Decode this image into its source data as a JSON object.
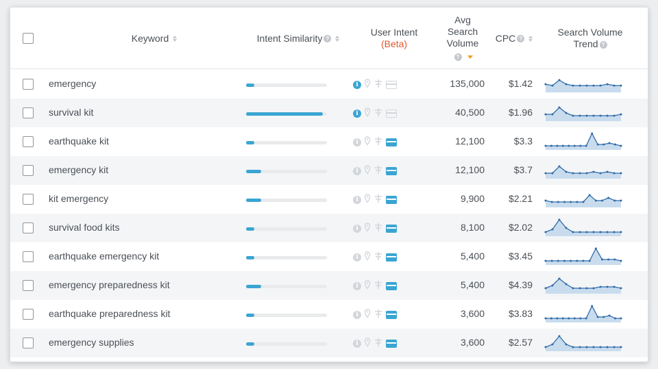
{
  "header": {
    "keyword": "Keyword",
    "intent_similarity": "Intent Similarity",
    "user_intent": "User Intent",
    "beta": "(Beta)",
    "avg_line1": "Avg",
    "avg_line2": "Search",
    "avg_line3": "Volume",
    "cpc": "CPC",
    "trend_line1": "Search Volume",
    "trend_line2": "Trend"
  },
  "colors": {
    "accent": "#3aa5d2",
    "beta": "#e4572e",
    "sort_active": "#f0a020",
    "icon_inactive": "#d3d6da"
  },
  "rows": [
    {
      "keyword": "emergency",
      "similarity": 0.1,
      "intent_info_active": true,
      "intent_card_active": false,
      "volume": "135,000",
      "cpc": "$1.42",
      "trend": [
        5,
        4,
        8,
        5,
        4,
        4,
        4,
        4,
        4,
        5,
        4,
        4
      ]
    },
    {
      "keyword": "survival kit",
      "similarity": 0.95,
      "intent_info_active": true,
      "intent_card_active": false,
      "volume": "40,500",
      "cpc": "$1.96",
      "trend": [
        4,
        4,
        9,
        5,
        3,
        3,
        3,
        3,
        3,
        3,
        3,
        4
      ]
    },
    {
      "keyword": "earthquake kit",
      "similarity": 0.1,
      "intent_info_active": false,
      "intent_card_active": true,
      "volume": "12,100",
      "cpc": "$3.3",
      "trend": [
        2,
        2,
        2,
        2,
        2,
        2,
        2,
        2,
        11,
        3,
        3,
        4,
        3,
        2
      ]
    },
    {
      "keyword": "emergency kit",
      "similarity": 0.19,
      "intent_info_active": false,
      "intent_card_active": true,
      "volume": "12,100",
      "cpc": "$3.7",
      "trend": [
        3,
        3,
        8,
        4,
        3,
        3,
        3,
        4,
        3,
        4,
        3,
        3
      ]
    },
    {
      "keyword": "kit emergency",
      "similarity": 0.19,
      "intent_info_active": false,
      "intent_card_active": true,
      "volume": "9,900",
      "cpc": "$2.21",
      "trend": [
        4,
        3,
        3,
        3,
        3,
        3,
        3,
        8,
        4,
        4,
        6,
        4,
        4
      ]
    },
    {
      "keyword": "survival food kits",
      "similarity": 0.1,
      "intent_info_active": false,
      "intent_card_active": true,
      "volume": "8,100",
      "cpc": "$2.02",
      "trend": [
        2,
        4,
        11,
        5,
        2,
        2,
        2,
        2,
        2,
        2,
        2,
        2
      ]
    },
    {
      "keyword": "earthquake emergency kit",
      "similarity": 0.1,
      "intent_info_active": false,
      "intent_card_active": true,
      "volume": "5,400",
      "cpc": "$3.45",
      "trend": [
        2,
        2,
        2,
        2,
        2,
        2,
        2,
        2,
        11,
        3,
        3,
        3,
        2
      ]
    },
    {
      "keyword": "emergency preparedness kit",
      "similarity": 0.19,
      "intent_info_active": false,
      "intent_card_active": true,
      "volume": "5,400",
      "cpc": "$4.39",
      "trend": [
        3,
        5,
        10,
        6,
        3,
        3,
        3,
        3,
        4,
        4,
        4,
        3
      ]
    },
    {
      "keyword": "earthquake preparedness kit",
      "similarity": 0.1,
      "intent_info_active": false,
      "intent_card_active": true,
      "volume": "3,600",
      "cpc": "$3.83",
      "trend": [
        2,
        2,
        2,
        2,
        2,
        2,
        2,
        2,
        11,
        3,
        3,
        4,
        2,
        2
      ]
    },
    {
      "keyword": "emergency supplies",
      "similarity": 0.1,
      "intent_info_active": false,
      "intent_card_active": true,
      "volume": "3,600",
      "cpc": "$2.57",
      "trend": [
        2,
        4,
        10,
        4,
        2,
        2,
        2,
        2,
        2,
        2,
        2,
        2
      ]
    }
  ]
}
